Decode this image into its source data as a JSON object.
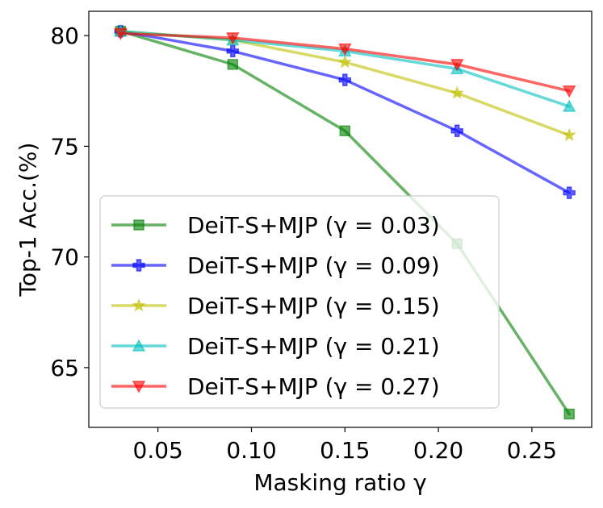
{
  "chart_data": {
    "type": "line",
    "title": "",
    "xlabel": "Masking ratio γ",
    "ylabel": "Top-1 Acc.(%)",
    "x": [
      0.03,
      0.09,
      0.15,
      0.21,
      0.27
    ],
    "xlim": [
      0.013,
      0.282
    ],
    "ylim": [
      62.3,
      81.1
    ],
    "xticks": [
      0.05,
      0.1,
      0.15,
      0.2,
      0.25
    ],
    "xtick_labels": [
      "0.05",
      "0.10",
      "0.15",
      "0.20",
      "0.25"
    ],
    "yticks": [
      65,
      70,
      75,
      80
    ],
    "ytick_labels": [
      "65",
      "70",
      "75",
      "80"
    ],
    "grid": false,
    "legend_position": "lower-left",
    "series": [
      {
        "name": "DeiT-S+MJP (γ = 0.03)",
        "color": "#008000",
        "marker": "square",
        "values": [
          80.2,
          78.7,
          75.7,
          70.6,
          62.9
        ]
      },
      {
        "name": "DeiT-S+MJP (γ = 0.09)",
        "color": "#0000ff",
        "marker": "plus",
        "values": [
          80.2,
          79.3,
          78.0,
          75.7,
          72.9
        ]
      },
      {
        "name": "DeiT-S+MJP (γ = 0.15)",
        "color": "#bfbf00",
        "marker": "star",
        "values": [
          80.2,
          79.8,
          78.8,
          77.4,
          75.5
        ]
      },
      {
        "name": "DeiT-S+MJP (γ = 0.21)",
        "color": "#00bfbf",
        "marker": "triangle-up",
        "values": [
          80.2,
          79.8,
          79.3,
          78.5,
          76.8
        ]
      },
      {
        "name": "DeiT-S+MJP (γ = 0.27)",
        "color": "#ff0000",
        "marker": "triangle-down",
        "values": [
          80.1,
          79.9,
          79.4,
          78.7,
          77.5
        ]
      }
    ]
  }
}
